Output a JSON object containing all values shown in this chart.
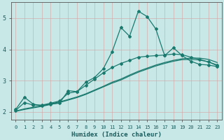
{
  "xlabel": "Humidex (Indice chaleur)",
  "bg_color": "#c8e8e8",
  "grid_color": "#e8f8f8",
  "line_color": "#1a7a6e",
  "xlim": [
    -0.5,
    23.5
  ],
  "ylim": [
    1.75,
    5.5
  ],
  "xticks": [
    0,
    1,
    2,
    3,
    4,
    5,
    6,
    7,
    8,
    9,
    10,
    11,
    12,
    13,
    14,
    15,
    16,
    17,
    18,
    19,
    20,
    21,
    22,
    23
  ],
  "yticks": [
    2,
    3,
    4,
    5
  ],
  "line1_x": [
    0,
    1,
    2,
    3,
    4,
    5,
    6,
    7,
    8,
    9,
    10,
    11,
    12,
    13,
    14,
    15,
    16,
    17,
    18,
    19,
    20,
    21,
    22,
    23
  ],
  "line1_y": [
    2.08,
    2.47,
    2.25,
    2.2,
    2.25,
    2.28,
    2.68,
    2.65,
    2.95,
    3.1,
    3.38,
    3.92,
    4.7,
    4.42,
    5.22,
    5.05,
    4.65,
    3.8,
    4.05,
    3.8,
    3.62,
    3.52,
    3.5,
    3.45
  ],
  "line2_x": [
    0,
    1,
    2,
    3,
    4,
    5,
    6,
    7,
    8,
    9,
    10,
    11,
    12,
    13,
    14,
    15,
    16,
    17,
    18,
    19,
    20,
    21,
    22,
    23
  ],
  "line2_y": [
    2.05,
    2.3,
    2.22,
    2.22,
    2.28,
    2.35,
    2.6,
    2.65,
    2.85,
    3.05,
    3.25,
    3.42,
    3.55,
    3.65,
    3.75,
    3.78,
    3.8,
    3.82,
    3.85,
    3.83,
    3.75,
    3.68,
    3.6,
    3.5
  ],
  "line3_x": [
    0,
    1,
    2,
    3,
    4,
    5,
    6,
    7,
    8,
    9,
    10,
    11,
    12,
    13,
    14,
    15,
    16,
    17,
    18,
    19,
    20,
    21,
    22,
    23
  ],
  "line3_y": [
    2.03,
    2.1,
    2.15,
    2.2,
    2.26,
    2.32,
    2.4,
    2.48,
    2.58,
    2.7,
    2.82,
    2.95,
    3.05,
    3.18,
    3.3,
    3.4,
    3.5,
    3.58,
    3.65,
    3.7,
    3.72,
    3.72,
    3.68,
    3.58
  ],
  "line4_x": [
    0,
    1,
    2,
    3,
    4,
    5,
    6,
    7,
    8,
    9,
    10,
    11,
    12,
    13,
    14,
    15,
    16,
    17,
    18,
    19,
    20,
    21,
    22,
    23
  ],
  "line4_y": [
    2.02,
    2.08,
    2.13,
    2.18,
    2.24,
    2.3,
    2.38,
    2.46,
    2.56,
    2.68,
    2.8,
    2.92,
    3.02,
    3.15,
    3.27,
    3.37,
    3.47,
    3.55,
    3.62,
    3.67,
    3.68,
    3.66,
    3.6,
    3.48
  ],
  "marker": "D",
  "markersize": 2.0,
  "linewidth": 0.9
}
